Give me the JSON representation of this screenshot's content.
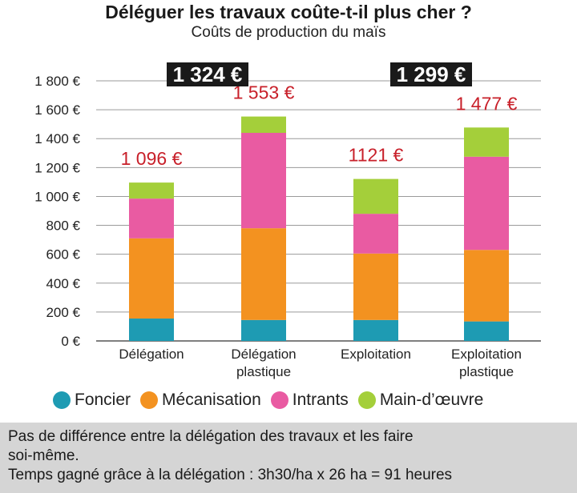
{
  "chart_data": {
    "type": "bar",
    "stacked": true,
    "title": "Déléguer les travaux coûte-t-il plus cher ?",
    "subtitle": "Coûts de production du maïs",
    "categories": [
      "Délégation",
      "Délégation plastique",
      "Exploitation",
      "Exploitation plastique"
    ],
    "category_lines": [
      [
        "Délégation"
      ],
      [
        "Délégation",
        "plastique"
      ],
      [
        "Exploitation"
      ],
      [
        "Exploitation",
        "plastique"
      ]
    ],
    "series": [
      {
        "name": "Foncier",
        "color": "#1e9bb3",
        "values": [
          155,
          145,
          145,
          135
        ]
      },
      {
        "name": "Mécanisation",
        "color": "#f39220",
        "values": [
          555,
          635,
          460,
          495
        ]
      },
      {
        "name": "Intrants",
        "color": "#e95ba2",
        "values": [
          275,
          660,
          275,
          645
        ]
      },
      {
        "name": "Main-d’œuvre",
        "color": "#a4cf3a",
        "values": [
          111,
          113,
          241,
          202
        ]
      }
    ],
    "totals": [
      "1 096 €",
      "1 553 €",
      "1121 €",
      "1 477 €"
    ],
    "group_totals": [
      "1 324 €",
      "1 299 €"
    ],
    "ylim": [
      0,
      1800
    ],
    "yticks": [
      0,
      200,
      400,
      600,
      800,
      1000,
      1200,
      1400,
      1600,
      1800
    ],
    "ytick_labels": [
      "0 €",
      "200 €",
      "400 €",
      "600 €",
      "800 €",
      "1 000 €",
      "1 200 €",
      "1 400 €",
      "1 600 €",
      "1 800 €"
    ],
    "grid": true,
    "legend_position": "bottom"
  },
  "note": {
    "line1": "Pas de différence entre la délégation des travaux et les faire",
    "line2": "soi-même.",
    "line3": "Temps gagné grâce à la délégation : 3h30/ha x 26 ha = 91 heures"
  }
}
